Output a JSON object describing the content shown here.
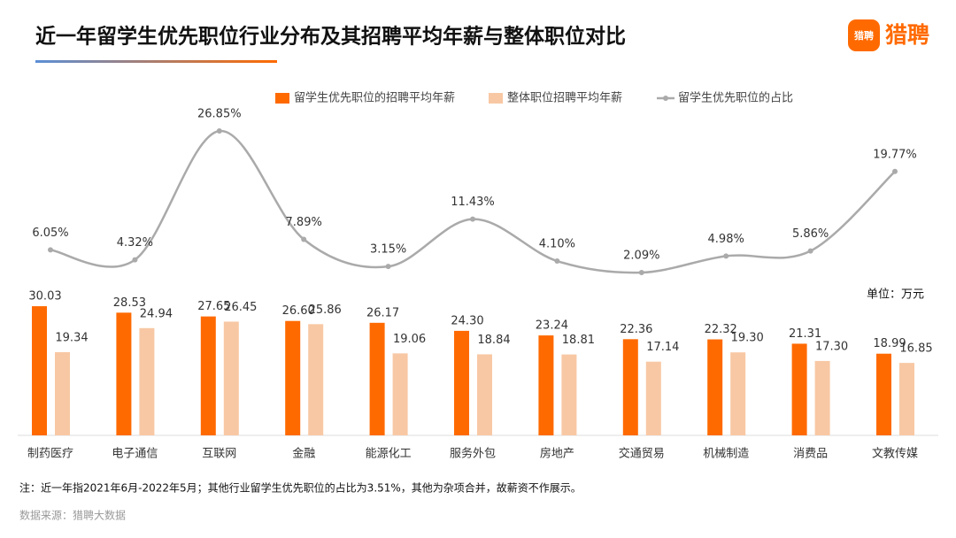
{
  "header": {
    "brand": "猎聘",
    "logo_text": "猎聘"
  },
  "chart_data": {
    "type": "bar-line",
    "title": "近一年留学生优先职位行业分布及其招聘平均年薪与整体职位对比",
    "unit_label": "单位：万元",
    "note": "注：近一年指2021年6月-2022年5月；其他行业留学生优先职位的占比为3.51%，其他为杂项合并，故薪资不作展示。",
    "source": "数据来源：猎聘大数据",
    "categories": [
      "制药医疗",
      "电子通信",
      "互联网",
      "金融",
      "能源化工",
      "服务外包",
      "房地产",
      "交通贸易",
      "机械制造",
      "消费品",
      "文教传媒"
    ],
    "series": [
      {
        "name": "留学生优先职位的招聘平均年薪",
        "type": "bar",
        "color": "#ff6a00",
        "values": [
          30.03,
          28.53,
          27.65,
          26.6,
          26.17,
          24.3,
          23.24,
          22.36,
          22.32,
          21.31,
          18.99
        ],
        "value_labels": [
          "30.03",
          "28.53",
          "27.65",
          "26.60",
          "26.17",
          "24.30",
          "23.24",
          "22.36",
          "22.32",
          "21.31",
          "18.99"
        ]
      },
      {
        "name": "整体职位招聘平均年薪",
        "type": "bar",
        "color": "#f8c8a4",
        "values": [
          19.34,
          24.94,
          26.45,
          25.86,
          19.06,
          18.84,
          18.81,
          17.14,
          19.3,
          17.3,
          16.85
        ],
        "value_labels": [
          "19.34",
          "24.94",
          "26.45",
          "25.86",
          "19.06",
          "18.84",
          "18.81",
          "17.14",
          "19.30",
          "17.30",
          "16.85"
        ]
      },
      {
        "name": "留学生优先职位的占比",
        "type": "line",
        "color": "#aaaaaa",
        "values": [
          6.05,
          4.32,
          26.85,
          7.89,
          3.15,
          11.43,
          4.1,
          2.09,
          4.98,
          5.86,
          19.77
        ],
        "value_labels": [
          "6.05%",
          "4.32%",
          "26.85%",
          "7.89%",
          "3.15%",
          "11.43%",
          "4.10%",
          "2.09%",
          "4.98%",
          "5.86%",
          "19.77%"
        ]
      }
    ]
  }
}
